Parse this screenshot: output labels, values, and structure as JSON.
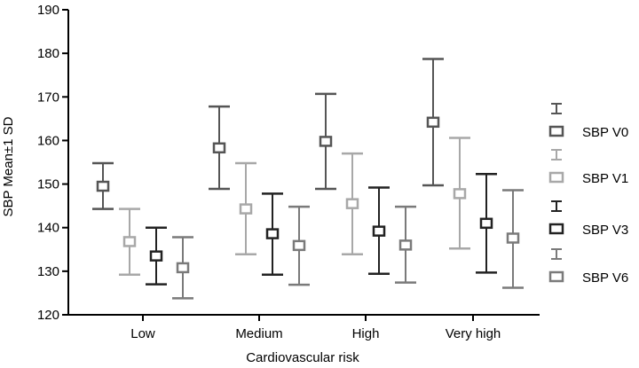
{
  "chart_data": {
    "type": "errorbar",
    "xlabel": "Cardiovascular risk",
    "ylabel": "SBP Mean±1 SD",
    "ylim": [
      120,
      190
    ],
    "yticks": [
      120,
      130,
      140,
      150,
      160,
      170,
      180,
      190
    ],
    "categories": [
      "Low",
      "Medium",
      "High",
      "Very high"
    ],
    "legend_position": "right",
    "grid": false,
    "series": [
      {
        "name": "SBP V0",
        "color": "#555555",
        "mean": [
          149.5,
          158.3,
          159.8,
          164.2
        ],
        "lower": [
          144.3,
          148.9,
          148.9,
          149.7
        ],
        "upper": [
          154.8,
          167.8,
          170.7,
          178.7
        ]
      },
      {
        "name": "SBP V1",
        "color": "#a8a8a8",
        "mean": [
          136.8,
          144.3,
          145.5,
          147.8
        ],
        "lower": [
          129.2,
          133.9,
          133.9,
          135.2
        ],
        "upper": [
          144.3,
          154.8,
          157.0,
          160.6
        ]
      },
      {
        "name": "SBP V3",
        "color": "#222222",
        "mean": [
          133.5,
          138.6,
          139.2,
          141.0
        ],
        "lower": [
          127.0,
          129.2,
          129.4,
          129.7
        ],
        "upper": [
          140.0,
          147.8,
          149.2,
          152.3
        ]
      },
      {
        "name": "SBP V6",
        "color": "#7a7a7a",
        "mean": [
          130.8,
          135.9,
          136.0,
          137.6
        ],
        "lower": [
          123.8,
          126.9,
          127.4,
          126.2
        ],
        "upper": [
          137.8,
          144.8,
          144.8,
          148.6
        ]
      }
    ]
  }
}
